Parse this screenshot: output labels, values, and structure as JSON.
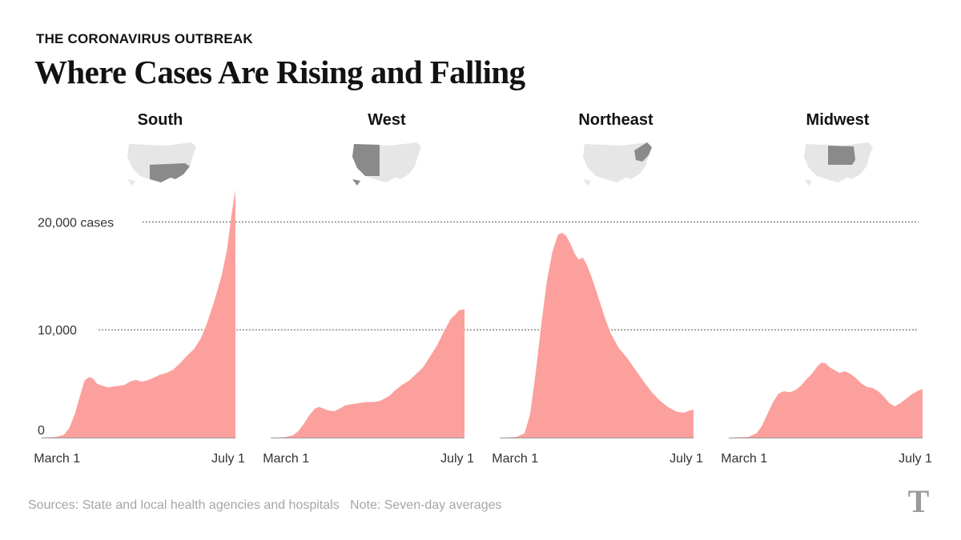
{
  "header": {
    "kicker": "THE CORONAVIRUS OUTBREAK",
    "title": "Where Cases Are Rising and Falling"
  },
  "footer": {
    "sources": "Sources: State and local health agencies and hospitals",
    "note": "Note: Seven-day averages"
  },
  "colors": {
    "area": "#fca09d",
    "map_base": "#e6e6e6",
    "map_highlight": "#8a8a8a",
    "gridline": "#555555"
  },
  "chart_data": {
    "type": "area",
    "y_unit_label": "20,000 cases",
    "y_ticks": [
      {
        "value": 0,
        "label": "0"
      },
      {
        "value": 10000,
        "label": "10,000"
      },
      {
        "value": 20000,
        "label": "20,000 cases"
      }
    ],
    "ylim": [
      0,
      23000
    ],
    "x_tick_labels": [
      "March 1",
      "July 1"
    ],
    "x_note": "Each panel spans from mid-February (day 0) to July 1 (day 140); March 1 is at day 14",
    "panels": [
      {
        "name": "South",
        "map_icon": "us-map-south-highlight",
        "points": [
          [
            0,
            0
          ],
          [
            10,
            50
          ],
          [
            16,
            250
          ],
          [
            20,
            900
          ],
          [
            24,
            2200
          ],
          [
            28,
            4000
          ],
          [
            31,
            5300
          ],
          [
            34,
            5600
          ],
          [
            37,
            5500
          ],
          [
            40,
            5000
          ],
          [
            44,
            4800
          ],
          [
            48,
            4650
          ],
          [
            52,
            4750
          ],
          [
            56,
            4800
          ],
          [
            60,
            4900
          ],
          [
            64,
            5200
          ],
          [
            68,
            5350
          ],
          [
            72,
            5200
          ],
          [
            76,
            5300
          ],
          [
            80,
            5500
          ],
          [
            85,
            5800
          ],
          [
            90,
            6000
          ],
          [
            95,
            6300
          ],
          [
            100,
            6900
          ],
          [
            105,
            7600
          ],
          [
            110,
            8200
          ],
          [
            115,
            9200
          ],
          [
            120,
            10800
          ],
          [
            125,
            12800
          ],
          [
            130,
            15000
          ],
          [
            134,
            17500
          ],
          [
            137,
            20500
          ],
          [
            140,
            23000
          ]
        ]
      },
      {
        "name": "West",
        "map_icon": "us-map-west-highlight",
        "points": [
          [
            0,
            0
          ],
          [
            10,
            40
          ],
          [
            16,
            200
          ],
          [
            20,
            600
          ],
          [
            24,
            1300
          ],
          [
            28,
            2100
          ],
          [
            32,
            2700
          ],
          [
            35,
            2850
          ],
          [
            38,
            2700
          ],
          [
            42,
            2500
          ],
          [
            46,
            2450
          ],
          [
            50,
            2700
          ],
          [
            54,
            3000
          ],
          [
            58,
            3100
          ],
          [
            62,
            3150
          ],
          [
            66,
            3250
          ],
          [
            70,
            3300
          ],
          [
            74,
            3300
          ],
          [
            78,
            3350
          ],
          [
            82,
            3600
          ],
          [
            86,
            3900
          ],
          [
            90,
            4400
          ],
          [
            95,
            4900
          ],
          [
            100,
            5300
          ],
          [
            105,
            5900
          ],
          [
            110,
            6500
          ],
          [
            115,
            7500
          ],
          [
            120,
            8500
          ],
          [
            125,
            9800
          ],
          [
            130,
            11000
          ],
          [
            134,
            11500
          ],
          [
            136,
            11800
          ],
          [
            140,
            11900
          ]
        ]
      },
      {
        "name": "Northeast",
        "map_icon": "us-map-northeast-highlight",
        "points": [
          [
            0,
            0
          ],
          [
            12,
            50
          ],
          [
            18,
            400
          ],
          [
            22,
            2200
          ],
          [
            26,
            6000
          ],
          [
            30,
            10500
          ],
          [
            34,
            14500
          ],
          [
            38,
            17200
          ],
          [
            42,
            18800
          ],
          [
            45,
            19000
          ],
          [
            48,
            18700
          ],
          [
            51,
            18000
          ],
          [
            54,
            17100
          ],
          [
            57,
            16500
          ],
          [
            60,
            16700
          ],
          [
            63,
            16000
          ],
          [
            66,
            15000
          ],
          [
            70,
            13500
          ],
          [
            75,
            11500
          ],
          [
            80,
            9700
          ],
          [
            86,
            8300
          ],
          [
            92,
            7400
          ],
          [
            98,
            6300
          ],
          [
            104,
            5200
          ],
          [
            110,
            4200
          ],
          [
            116,
            3400
          ],
          [
            122,
            2800
          ],
          [
            128,
            2400
          ],
          [
            133,
            2300
          ],
          [
            137,
            2500
          ],
          [
            140,
            2600
          ]
        ]
      },
      {
        "name": "Midwest",
        "map_icon": "us-map-midwest-highlight",
        "points": [
          [
            0,
            0
          ],
          [
            14,
            60
          ],
          [
            20,
            400
          ],
          [
            24,
            1100
          ],
          [
            28,
            2200
          ],
          [
            32,
            3300
          ],
          [
            36,
            4100
          ],
          [
            40,
            4300
          ],
          [
            44,
            4200
          ],
          [
            48,
            4400
          ],
          [
            52,
            4800
          ],
          [
            56,
            5400
          ],
          [
            60,
            5900
          ],
          [
            64,
            6600
          ],
          [
            67,
            6950
          ],
          [
            70,
            6900
          ],
          [
            73,
            6500
          ],
          [
            76,
            6300
          ],
          [
            80,
            6000
          ],
          [
            84,
            6150
          ],
          [
            88,
            5900
          ],
          [
            92,
            5500
          ],
          [
            96,
            5000
          ],
          [
            100,
            4700
          ],
          [
            104,
            4600
          ],
          [
            108,
            4300
          ],
          [
            112,
            3800
          ],
          [
            116,
            3200
          ],
          [
            120,
            2900
          ],
          [
            124,
            3200
          ],
          [
            128,
            3600
          ],
          [
            132,
            4000
          ],
          [
            136,
            4300
          ],
          [
            140,
            4500
          ]
        ]
      }
    ]
  }
}
